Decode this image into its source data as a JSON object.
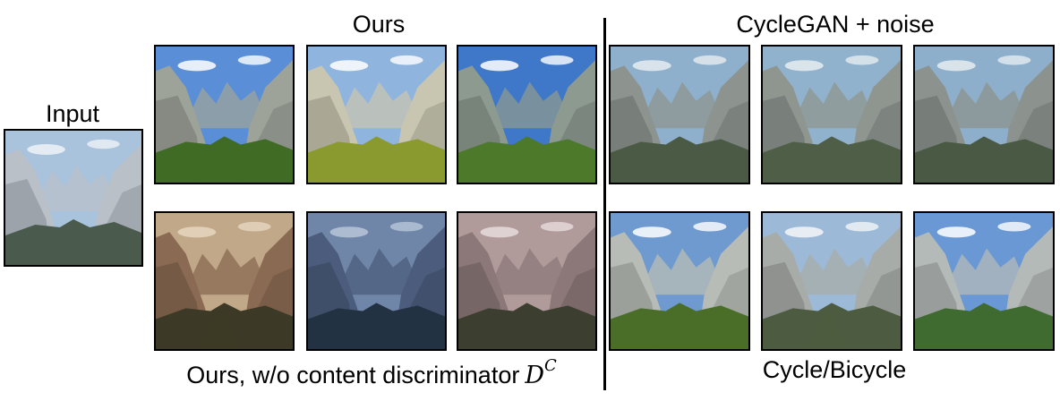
{
  "labels": {
    "input": "Input",
    "ours": "Ours",
    "cyclegan_noise": "CycleGAN + noise",
    "ours_wo_prefix": "Ours, w/o content discriminator",
    "ours_wo_math": "D",
    "ours_wo_math_sup": "C",
    "cycle_bicycle": "Cycle/Bicycle"
  },
  "images": {
    "input": {
      "sky": "#a9c3dd",
      "rock": "#b9c0c8",
      "valley": "#4a5a4c",
      "snow": "#eef2f6"
    },
    "ours_1": {
      "sky": "#5a8fd8",
      "rock": "#9ea39a",
      "valley": "#3f6b25",
      "cloud": "#ffffff"
    },
    "ours_2": {
      "sky": "#8fb4de",
      "rock": "#c8c6b0",
      "valley": "#8a9a2e",
      "cloud": "#ffffff"
    },
    "ours_3": {
      "sky": "#3f78c8",
      "rock": "#8d9a90",
      "valley": "#4c7a2a",
      "cloud": "#ffffff"
    },
    "ours_wo_1": {
      "sky": "#c0a888",
      "rock": "#8a6a52",
      "valley": "#3c3a26",
      "cloud": "#e6d6c0"
    },
    "ours_wo_2": {
      "sky": "#6f86a8",
      "rock": "#4b5c7c",
      "valley": "#233242",
      "cloud": "#b8c6d8"
    },
    "ours_wo_3": {
      "sky": "#b09a9a",
      "rock": "#8c7878",
      "valley": "#3c3e30",
      "cloud": "#e8dcdc"
    },
    "cyclegan_1": {
      "sky": "#8fb0cc",
      "rock": "#8d9490",
      "valley": "#4b5a44",
      "cloud": "#e6ecf0"
    },
    "cyclegan_2": {
      "sky": "#90b2cc",
      "rock": "#8f9690",
      "valley": "#4f5e46",
      "cloud": "#e6ecf0"
    },
    "cyclegan_3": {
      "sky": "#8eafcb",
      "rock": "#8c938e",
      "valley": "#4a5943",
      "cloud": "#e6ecf0"
    },
    "cycle_1": {
      "sky": "#6f9ad0",
      "rock": "#b8bcb6",
      "valley": "#4a6e28",
      "cloud": "#ffffff"
    },
    "cycle_2": {
      "sky": "#9cbad8",
      "rock": "#a8aca8",
      "valley": "#4d5c40",
      "cloud": "#f4f6f8"
    },
    "cycle_3": {
      "sky": "#6a98d4",
      "rock": "#b4bab8",
      "valley": "#3f6a30",
      "cloud": "#ffffff"
    }
  }
}
